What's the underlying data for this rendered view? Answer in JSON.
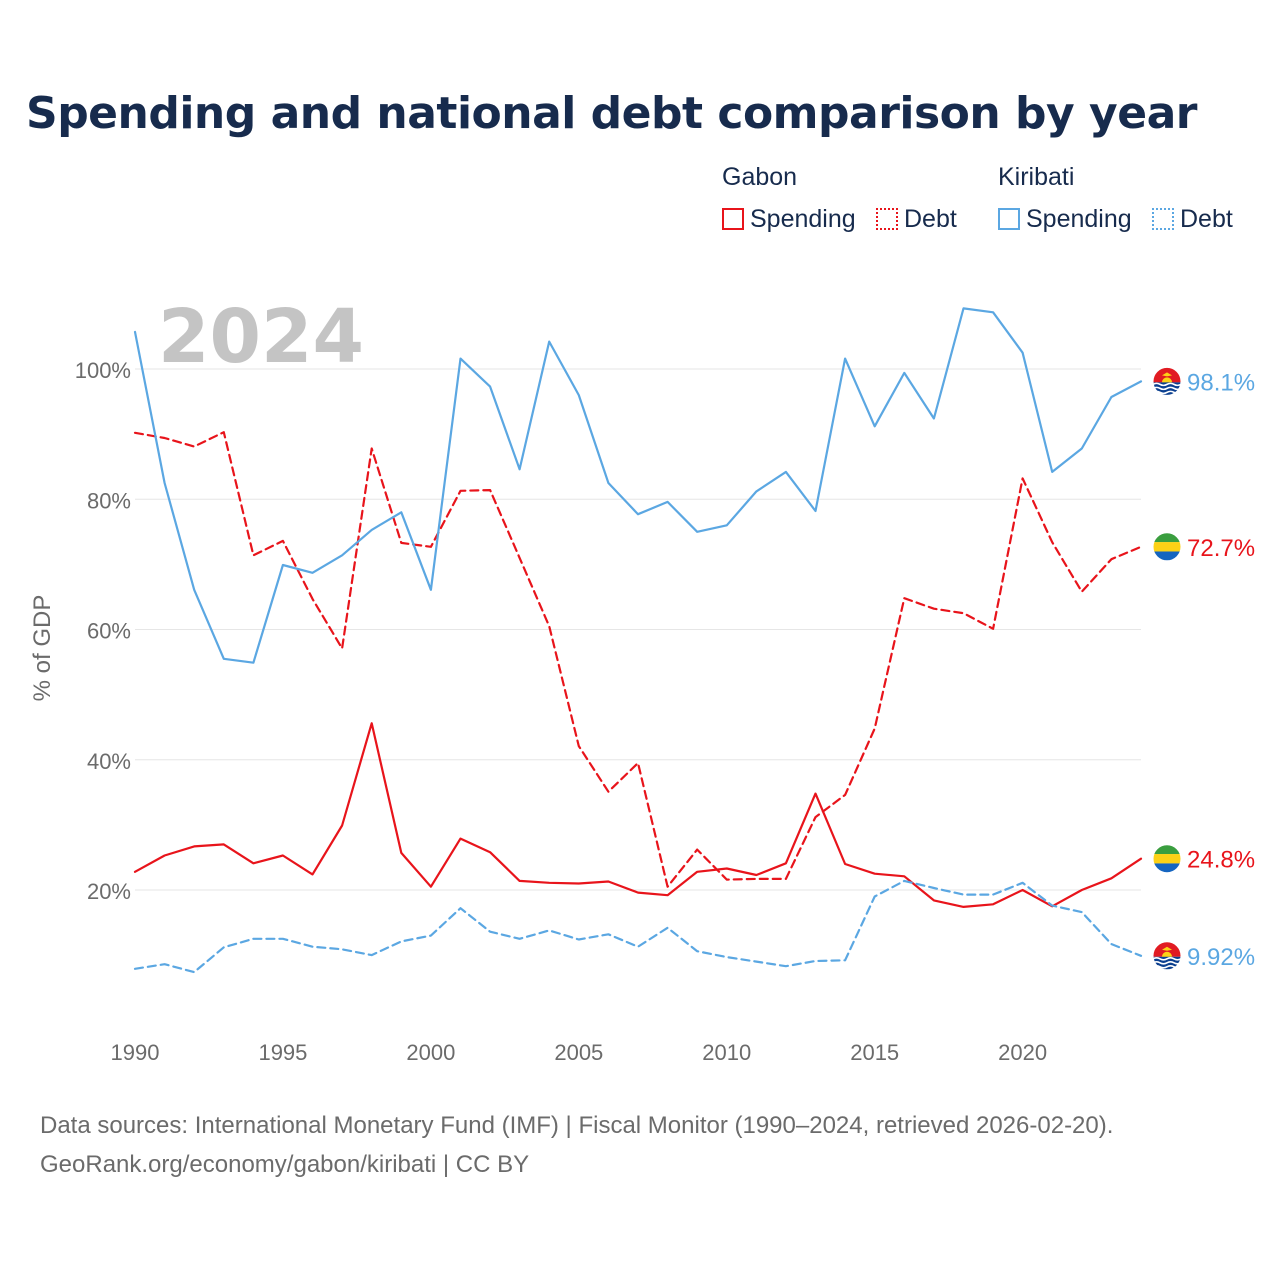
{
  "chart_data": {
    "type": "line",
    "title": "Spending and national debt comparison by year",
    "year_label": "2024",
    "xlabel": "",
    "ylabel": "% of GDP",
    "xlim": [
      1990,
      2024
    ],
    "ylim": [
      0,
      110
    ],
    "x_ticks": [
      1990,
      1995,
      2000,
      2005,
      2010,
      2015,
      2020
    ],
    "y_ticks": [
      20,
      40,
      60,
      80,
      100
    ],
    "y_tick_labels": [
      "20%",
      "40%",
      "60%",
      "80%",
      "100%"
    ],
    "x": [
      1990,
      1991,
      1992,
      1993,
      1994,
      1995,
      1996,
      1997,
      1998,
      1999,
      2000,
      2001,
      2002,
      2003,
      2004,
      2005,
      2006,
      2007,
      2008,
      2009,
      2010,
      2011,
      2012,
      2013,
      2014,
      2015,
      2016,
      2017,
      2018,
      2019,
      2020,
      2021,
      2022,
      2023,
      2024
    ],
    "series": [
      {
        "name": "Gabon Spending",
        "country": "Gabon",
        "measure": "Spending",
        "color": "#e8141b",
        "dashed": false,
        "end_label": "24.8%",
        "flag": "gabon-flag-icon",
        "values": [
          22.8,
          25.3,
          26.7,
          27.0,
          24.1,
          25.3,
          22.4,
          29.9,
          45.6,
          25.7,
          20.5,
          27.9,
          25.8,
          21.4,
          21.1,
          21.0,
          21.3,
          19.6,
          19.2,
          22.8,
          23.3,
          22.3,
          24.1,
          34.8,
          24.0,
          22.5,
          22.1,
          18.4,
          17.4,
          17.8,
          20.0,
          17.5,
          20.0,
          21.8,
          24.8
        ]
      },
      {
        "name": "Gabon Debt",
        "country": "Gabon",
        "measure": "Debt",
        "color": "#e8141b",
        "dashed": true,
        "end_label": "72.7%",
        "flag": "gabon-flag-icon",
        "values": [
          90.2,
          89.4,
          88.1,
          90.3,
          71.4,
          73.6,
          64.7,
          57.1,
          87.8,
          73.3,
          72.7,
          81.3,
          81.4,
          71.0,
          60.5,
          42.1,
          35.1,
          39.5,
          20.5,
          26.2,
          21.6,
          21.7,
          21.7,
          31.2,
          34.6,
          44.8,
          64.8,
          63.2,
          62.5,
          60.1,
          83.2,
          73.4,
          65.8,
          70.8,
          72.7
        ]
      },
      {
        "name": "Kiribati Spending",
        "country": "Kiribati",
        "measure": "Spending",
        "color": "#5ba7e2",
        "dashed": false,
        "end_label": "98.1%",
        "flag": "kiribati-flag-icon",
        "values": [
          105.7,
          82.5,
          66.1,
          55.5,
          54.9,
          69.9,
          68.7,
          71.4,
          75.3,
          78.0,
          66.1,
          101.6,
          97.3,
          84.6,
          104.2,
          96.0,
          82.5,
          77.7,
          79.6,
          75.0,
          76.0,
          81.2,
          84.2,
          78.2,
          101.6,
          91.2,
          99.4,
          92.4,
          109.3,
          108.7,
          102.5,
          84.2,
          87.8,
          95.7,
          98.1
        ]
      },
      {
        "name": "Kiribati Debt",
        "country": "Kiribati",
        "measure": "Debt",
        "color": "#5ba7e2",
        "dashed": true,
        "end_label": "9.92%",
        "flag": "kiribati-flag-icon",
        "values": [
          7.9,
          8.6,
          7.4,
          11.2,
          12.5,
          12.5,
          11.3,
          10.9,
          10.0,
          12.1,
          13.0,
          17.2,
          13.6,
          12.5,
          13.8,
          12.4,
          13.2,
          11.3,
          14.2,
          10.6,
          9.7,
          9.0,
          8.3,
          9.1,
          9.2,
          19.0,
          21.4,
          20.3,
          19.3,
          19.3,
          21.1,
          17.6,
          16.6,
          11.7,
          9.9
        ]
      }
    ]
  },
  "legend": {
    "groups": [
      {
        "label": "Gabon",
        "items": [
          {
            "label": "Spending"
          },
          {
            "label": "Debt"
          }
        ]
      },
      {
        "label": "Kiribati",
        "items": [
          {
            "label": "Spending"
          },
          {
            "label": "Debt"
          }
        ]
      }
    ]
  },
  "colors": {
    "gabon": "#e8141b",
    "kiribati": "#5ba7e2",
    "title": "#172b4d"
  },
  "source": {
    "line1": "Data sources: International Monetary Fund (IMF) | Fiscal Monitor (1990–2024, retrieved 2026-02-20).",
    "line2": "GeoRank.org/economy/gabon/kiribati | CC BY"
  }
}
